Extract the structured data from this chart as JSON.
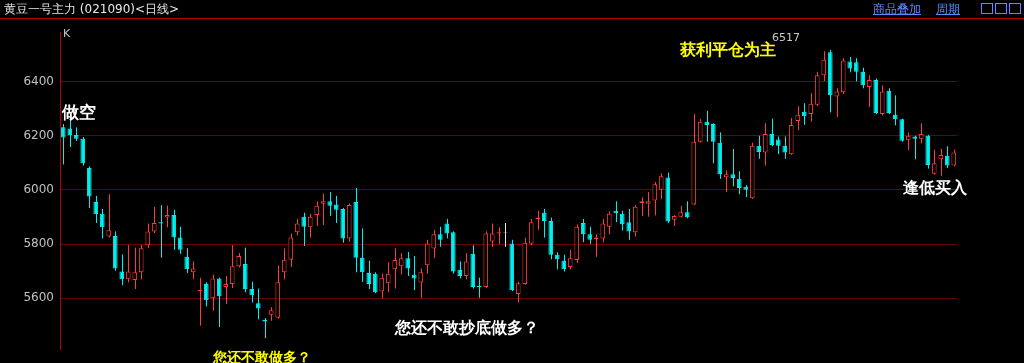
{
  "chart_data": {
    "type": "candlestick",
    "title": "黄豆一号主力 (021090)<日线>",
    "categories": [
      null,
      null,
      null,
      null,
      null,
      null,
      null,
      null,
      null,
      null,
      null,
      null,
      null,
      null,
      null,
      null,
      null,
      null,
      null,
      null,
      null,
      null,
      null,
      null,
      null,
      null,
      null,
      null,
      null,
      null,
      null,
      null,
      null,
      null,
      null,
      null,
      null,
      null,
      null,
      null,
      null,
      null,
      null,
      null,
      null,
      null,
      null,
      null,
      null,
      null,
      null,
      null,
      null,
      null,
      null,
      null,
      null,
      null,
      null,
      null,
      null,
      null,
      null,
      null,
      null,
      null,
      null,
      null,
      null,
      null,
      null,
      null,
      null,
      null,
      null,
      null,
      null,
      null,
      null,
      null,
      null,
      null,
      null,
      null,
      null,
      null,
      null,
      null,
      null,
      null,
      null,
      null,
      null,
      null,
      null,
      null,
      null,
      null,
      null,
      null,
      null,
      null,
      null,
      null,
      null,
      null,
      null,
      null,
      null,
      null,
      null,
      null,
      null,
      null,
      null,
      null,
      null,
      null,
      null,
      null,
      null,
      null,
      null,
      null,
      null,
      null,
      null,
      null,
      null,
      null,
      null,
      null,
      null,
      null,
      null,
      null,
      null,
      null
    ],
    "ohlc": [
      [
        6231,
        6243,
        6094,
        6193
      ],
      [
        6227,
        6258,
        6158,
        6202
      ],
      [
        6203,
        6231,
        6181,
        6189
      ],
      [
        6189,
        6195,
        6090,
        6098
      ],
      [
        6081,
        6087,
        5933,
        5976
      ],
      [
        5955,
        5978,
        5878,
        5910
      ],
      [
        5912,
        5930,
        5821,
        5862
      ],
      [
        5828,
        5984,
        5824,
        5851
      ],
      [
        5830,
        5847,
        5702,
        5710
      ],
      [
        5699,
        5762,
        5648,
        5670
      ],
      [
        5670,
        5796,
        5659,
        5699
      ],
      [
        5668,
        5787,
        5634,
        5696
      ],
      [
        5696,
        5798,
        5670,
        5785
      ],
      [
        5796,
        5876,
        5785,
        5847
      ],
      [
        5847,
        5938,
        5841,
        5878
      ],
      [
        5881,
        5944,
        5750,
        5876
      ],
      [
        5898,
        5942,
        5862,
        5907
      ],
      [
        5907,
        5927,
        5779,
        5824
      ],
      [
        5824,
        5864,
        5764,
        5779
      ],
      [
        5753,
        5785,
        5693,
        5707
      ],
      [
        5696,
        5736,
        5670,
        5710
      ],
      [
        5627,
        5676,
        5499,
        5632
      ],
      [
        5653,
        5659,
        5570,
        5593
      ],
      [
        5600,
        5688,
        5554,
        5673
      ],
      [
        5673,
        5676,
        5494,
        5608
      ],
      [
        5642,
        5682,
        5579,
        5653
      ],
      [
        5653,
        5796,
        5638,
        5718
      ],
      [
        5718,
        5767,
        5714,
        5756
      ],
      [
        5727,
        5787,
        5622,
        5634
      ],
      [
        5634,
        5661,
        5585,
        5611
      ],
      [
        5582,
        5636,
        5522,
        5562
      ],
      [
        5521,
        5527,
        5453,
        5514
      ],
      [
        5539,
        5567,
        5517,
        5556
      ],
      [
        5528,
        5721,
        5525,
        5659
      ],
      [
        5696,
        5784,
        5670,
        5742
      ],
      [
        5742,
        5839,
        5716,
        5824
      ],
      [
        5844,
        5893,
        5832,
        5876
      ],
      [
        5901,
        5916,
        5793,
        5864
      ],
      [
        5862,
        5912,
        5824,
        5901
      ],
      [
        5907,
        5958,
        5867,
        5942
      ],
      [
        5949,
        5987,
        5870,
        5958
      ],
      [
        5958,
        5992,
        5904,
        5942
      ],
      [
        5946,
        5978,
        5878,
        5927
      ],
      [
        5930,
        5933,
        5805,
        5821
      ],
      [
        5821,
        5950,
        5809,
        5944
      ],
      [
        5955,
        6007,
        5696,
        5750
      ],
      [
        5750,
        5858,
        5661,
        5696
      ],
      [
        5693,
        5739,
        5634,
        5653
      ],
      [
        5691,
        5696,
        5619,
        5622
      ],
      [
        5625,
        5691,
        5600,
        5676
      ],
      [
        5656,
        5733,
        5622,
        5691
      ],
      [
        5707,
        5784,
        5636,
        5741
      ],
      [
        5718,
        5767,
        5688,
        5748
      ],
      [
        5748,
        5771,
        5682,
        5710
      ],
      [
        5687,
        5756,
        5630,
        5673
      ],
      [
        5658,
        5710,
        5601,
        5696
      ],
      [
        5722,
        5816,
        5691,
        5802
      ],
      [
        5784,
        5853,
        5748,
        5836
      ],
      [
        5836,
        5864,
        5790,
        5816
      ],
      [
        5876,
        5893,
        5821,
        5839
      ],
      [
        5844,
        5847,
        5691,
        5699
      ],
      [
        5705,
        5736,
        5673,
        5682
      ],
      [
        5682,
        5767,
        5670,
        5736
      ],
      [
        5764,
        5796,
        5636,
        5642
      ],
      [
        5645,
        5676,
        5602,
        5641
      ],
      [
        5642,
        5847,
        5638,
        5839
      ],
      [
        5810,
        5876,
        5790,
        5839
      ],
      [
        5839,
        5862,
        5801,
        5844
      ],
      [
        5841,
        5878,
        5790,
        5843
      ],
      [
        5802,
        5816,
        5627,
        5630
      ],
      [
        5616,
        5661,
        5585,
        5656
      ],
      [
        5653,
        5824,
        5650,
        5805
      ],
      [
        5801,
        5893,
        5796,
        5881
      ],
      [
        5891,
        5923,
        5853,
        5898
      ],
      [
        5916,
        5930,
        5824,
        5885
      ],
      [
        5885,
        5898,
        5744,
        5761
      ],
      [
        5761,
        5770,
        5707,
        5744
      ],
      [
        5739,
        5761,
        5699,
        5707
      ],
      [
        5716,
        5779,
        5707,
        5748
      ],
      [
        5741,
        5873,
        5730,
        5864
      ],
      [
        5878,
        5893,
        5807,
        5836
      ],
      [
        5836,
        5864,
        5801,
        5816
      ],
      [
        5818,
        5836,
        5753,
        5824
      ],
      [
        5821,
        5893,
        5807,
        5876
      ],
      [
        5864,
        5921,
        5836,
        5912
      ],
      [
        5923,
        5958,
        5881,
        5914
      ],
      [
        5912,
        5923,
        5850,
        5873
      ],
      [
        5881,
        5930,
        5816,
        5847
      ],
      [
        5844,
        5944,
        5828,
        5938
      ],
      [
        5952,
        5973,
        5904,
        5958
      ],
      [
        5949,
        5992,
        5901,
        5958
      ],
      [
        5961,
        6029,
        5906,
        6021
      ],
      [
        6001,
        6061,
        5966,
        6050
      ],
      [
        6046,
        6064,
        5878,
        5883
      ],
      [
        5890,
        5907,
        5867,
        5904
      ],
      [
        5901,
        5941,
        5898,
        5918
      ],
      [
        5918,
        5958,
        5895,
        5899
      ],
      [
        5946,
        6280,
        5944,
        6178
      ],
      [
        6178,
        6261,
        6174,
        6252
      ],
      [
        6252,
        6292,
        6178,
        6240
      ],
      [
        6243,
        6246,
        6098,
        6178
      ],
      [
        6174,
        6212,
        6041,
        6058
      ],
      [
        6047,
        6072,
        5992,
        6058
      ],
      [
        6058,
        6151,
        6013,
        6044
      ],
      [
        6041,
        6069,
        5984,
        6007
      ],
      [
        6012,
        6018,
        5973,
        6001
      ],
      [
        5969,
        6174,
        5967,
        6163
      ],
      [
        6163,
        6200,
        6115,
        6140
      ],
      [
        6138,
        6246,
        6090,
        6206
      ],
      [
        6206,
        6263,
        6161,
        6166
      ],
      [
        6186,
        6197,
        6132,
        6163
      ],
      [
        6163,
        6197,
        6115,
        6138
      ],
      [
        6132,
        6265,
        6129,
        6240
      ],
      [
        6254,
        6309,
        6220,
        6277
      ],
      [
        6288,
        6320,
        6240,
        6272
      ],
      [
        6280,
        6357,
        6252,
        6318
      ],
      [
        6314,
        6436,
        6309,
        6423
      ],
      [
        6423,
        6512,
        6402,
        6480
      ],
      [
        6508,
        6517,
        6286,
        6349
      ],
      [
        6345,
        6375,
        6269,
        6363
      ],
      [
        6360,
        6486,
        6354,
        6478
      ],
      [
        6474,
        6491,
        6434,
        6448
      ],
      [
        6471,
        6486,
        6400,
        6436
      ],
      [
        6436,
        6451,
        6375,
        6386
      ],
      [
        6380,
        6423,
        6306,
        6406
      ],
      [
        6406,
        6411,
        6280,
        6284
      ],
      [
        6280,
        6386,
        6275,
        6363
      ],
      [
        6366,
        6375,
        6280,
        6284
      ],
      [
        6277,
        6349,
        6238,
        6261
      ],
      [
        6261,
        6263,
        6178,
        6181
      ],
      [
        6183,
        6212,
        6147,
        6200
      ],
      [
        6197,
        6200,
        6113,
        6189
      ],
      [
        6189,
        6246,
        6172,
        6206
      ],
      [
        6200,
        6203,
        6079,
        6092
      ],
      [
        6060,
        6149,
        6056,
        6098
      ],
      [
        6113,
        6152,
        6052,
        6129
      ],
      [
        6126,
        6161,
        6081,
        6090
      ],
      [
        6090,
        6149,
        6087,
        6138
      ]
    ],
    "colors": [
      "#00f0f0",
      "#00f0f0",
      "#00f0f0",
      "#00f0f0",
      "#00f0f0",
      "#00f0f0",
      "#00f0f0",
      "#ff3a3a",
      "#00f0f0",
      "#00f0f0",
      "#ff3a3a",
      "#ff3a3a",
      "#ff3a3a",
      "#ff3a3a",
      "#ff3a3a",
      "#00f0f0",
      "#ff3a3a",
      "#00f0f0",
      "#00f0f0",
      "#00f0f0",
      "#ff3a3a",
      "#ff3a3a",
      "#00f0f0",
      "#ff3a3a",
      "#00f0f0",
      "#ff3a3a",
      "#ff3a3a",
      "#ff3a3a",
      "#00f0f0",
      "#00f0f0",
      "#00f0f0",
      "#00f0f0",
      "#ff3a3a",
      "#ff3a3a",
      "#ff3a3a",
      "#ff3a3a",
      "#ff3a3a",
      "#00f0f0",
      "#ff3a3a",
      "#ff3a3a",
      "#ff3a3a",
      "#00f0f0",
      "#00f0f0",
      "#00f0f0",
      "#ff3a3a",
      "#00f0f0",
      "#00f0f0",
      "#00f0f0",
      "#00f0f0",
      "#ff3a3a",
      "#ff3a3a",
      "#ff3a3a",
      "#ff3a3a",
      "#00f0f0",
      "#00f0f0",
      "#ff3a3a",
      "#ff3a3a",
      "#ff3a3a",
      "#00f0f0",
      "#00f0f0",
      "#00f0f0",
      "#00f0f0",
      "#ff3a3a",
      "#00f0f0",
      "#00f0f0",
      "#ff3a3a",
      "#ff3a3a",
      "#ff3a3a",
      "#e8e8e8",
      "#00f0f0",
      "#ff3a3a",
      "#ff3a3a",
      "#ff3a3a",
      "#ff3a3a",
      "#00f0f0",
      "#00f0f0",
      "#00f0f0",
      "#00f0f0",
      "#ff3a3a",
      "#ff3a3a",
      "#00f0f0",
      "#00f0f0",
      "#ff3a3a",
      "#ff3a3a",
      "#ff3a3a",
      "#00f0f0",
      "#00f0f0",
      "#00f0f0",
      "#ff3a3a",
      "#ff3a3a",
      "#ff3a3a",
      "#ff3a3a",
      "#ff3a3a",
      "#00f0f0",
      "#ff3a3a",
      "#ff3a3a",
      "#00f0f0",
      "#ff3a3a",
      "#ff3a3a",
      "#00f0f0",
      "#00f0f0",
      "#00f0f0",
      "#ff3a3a",
      "#00f0f0",
      "#00f0f0",
      "#00f0f0",
      "#ff3a3a",
      "#00f0f0",
      "#ff3a3a",
      "#00f0f0",
      "#00f0f0",
      "#00f0f0",
      "#ff3a3a",
      "#ff3a3a",
      "#00f0f0",
      "#ff3a3a",
      "#ff3a3a",
      "#ff3a3a",
      "#00f0f0",
      "#ff3a3a",
      "#ff3a3a",
      "#00f0f0",
      "#00f0f0",
      "#00f0f0",
      "#ff3a3a",
      "#00f0f0",
      "#ff3a3a",
      "#00f0f0",
      "#00f0f0",
      "#00f0f0",
      "#ff3a3a",
      "#00f0f0",
      "#ff3a3a",
      "#00f0f0",
      "#ff3a3a",
      "#ff3a3a",
      "#00f0f0",
      "#ff3a3a"
    ],
    "ylim": [
      5410,
      6582
    ],
    "yticks": [
      5600,
      5800,
      6000,
      6200,
      6400
    ],
    "grid": "y",
    "tick_labels": "y",
    "legend": false,
    "annotations": [
      "商品叠加",
      "周期",
      "K",
      "做空",
      "6517",
      "获利平仓为主",
      "逢低买入",
      "您还不敢抄底做多？",
      "您还不敢做多？"
    ]
  }
}
